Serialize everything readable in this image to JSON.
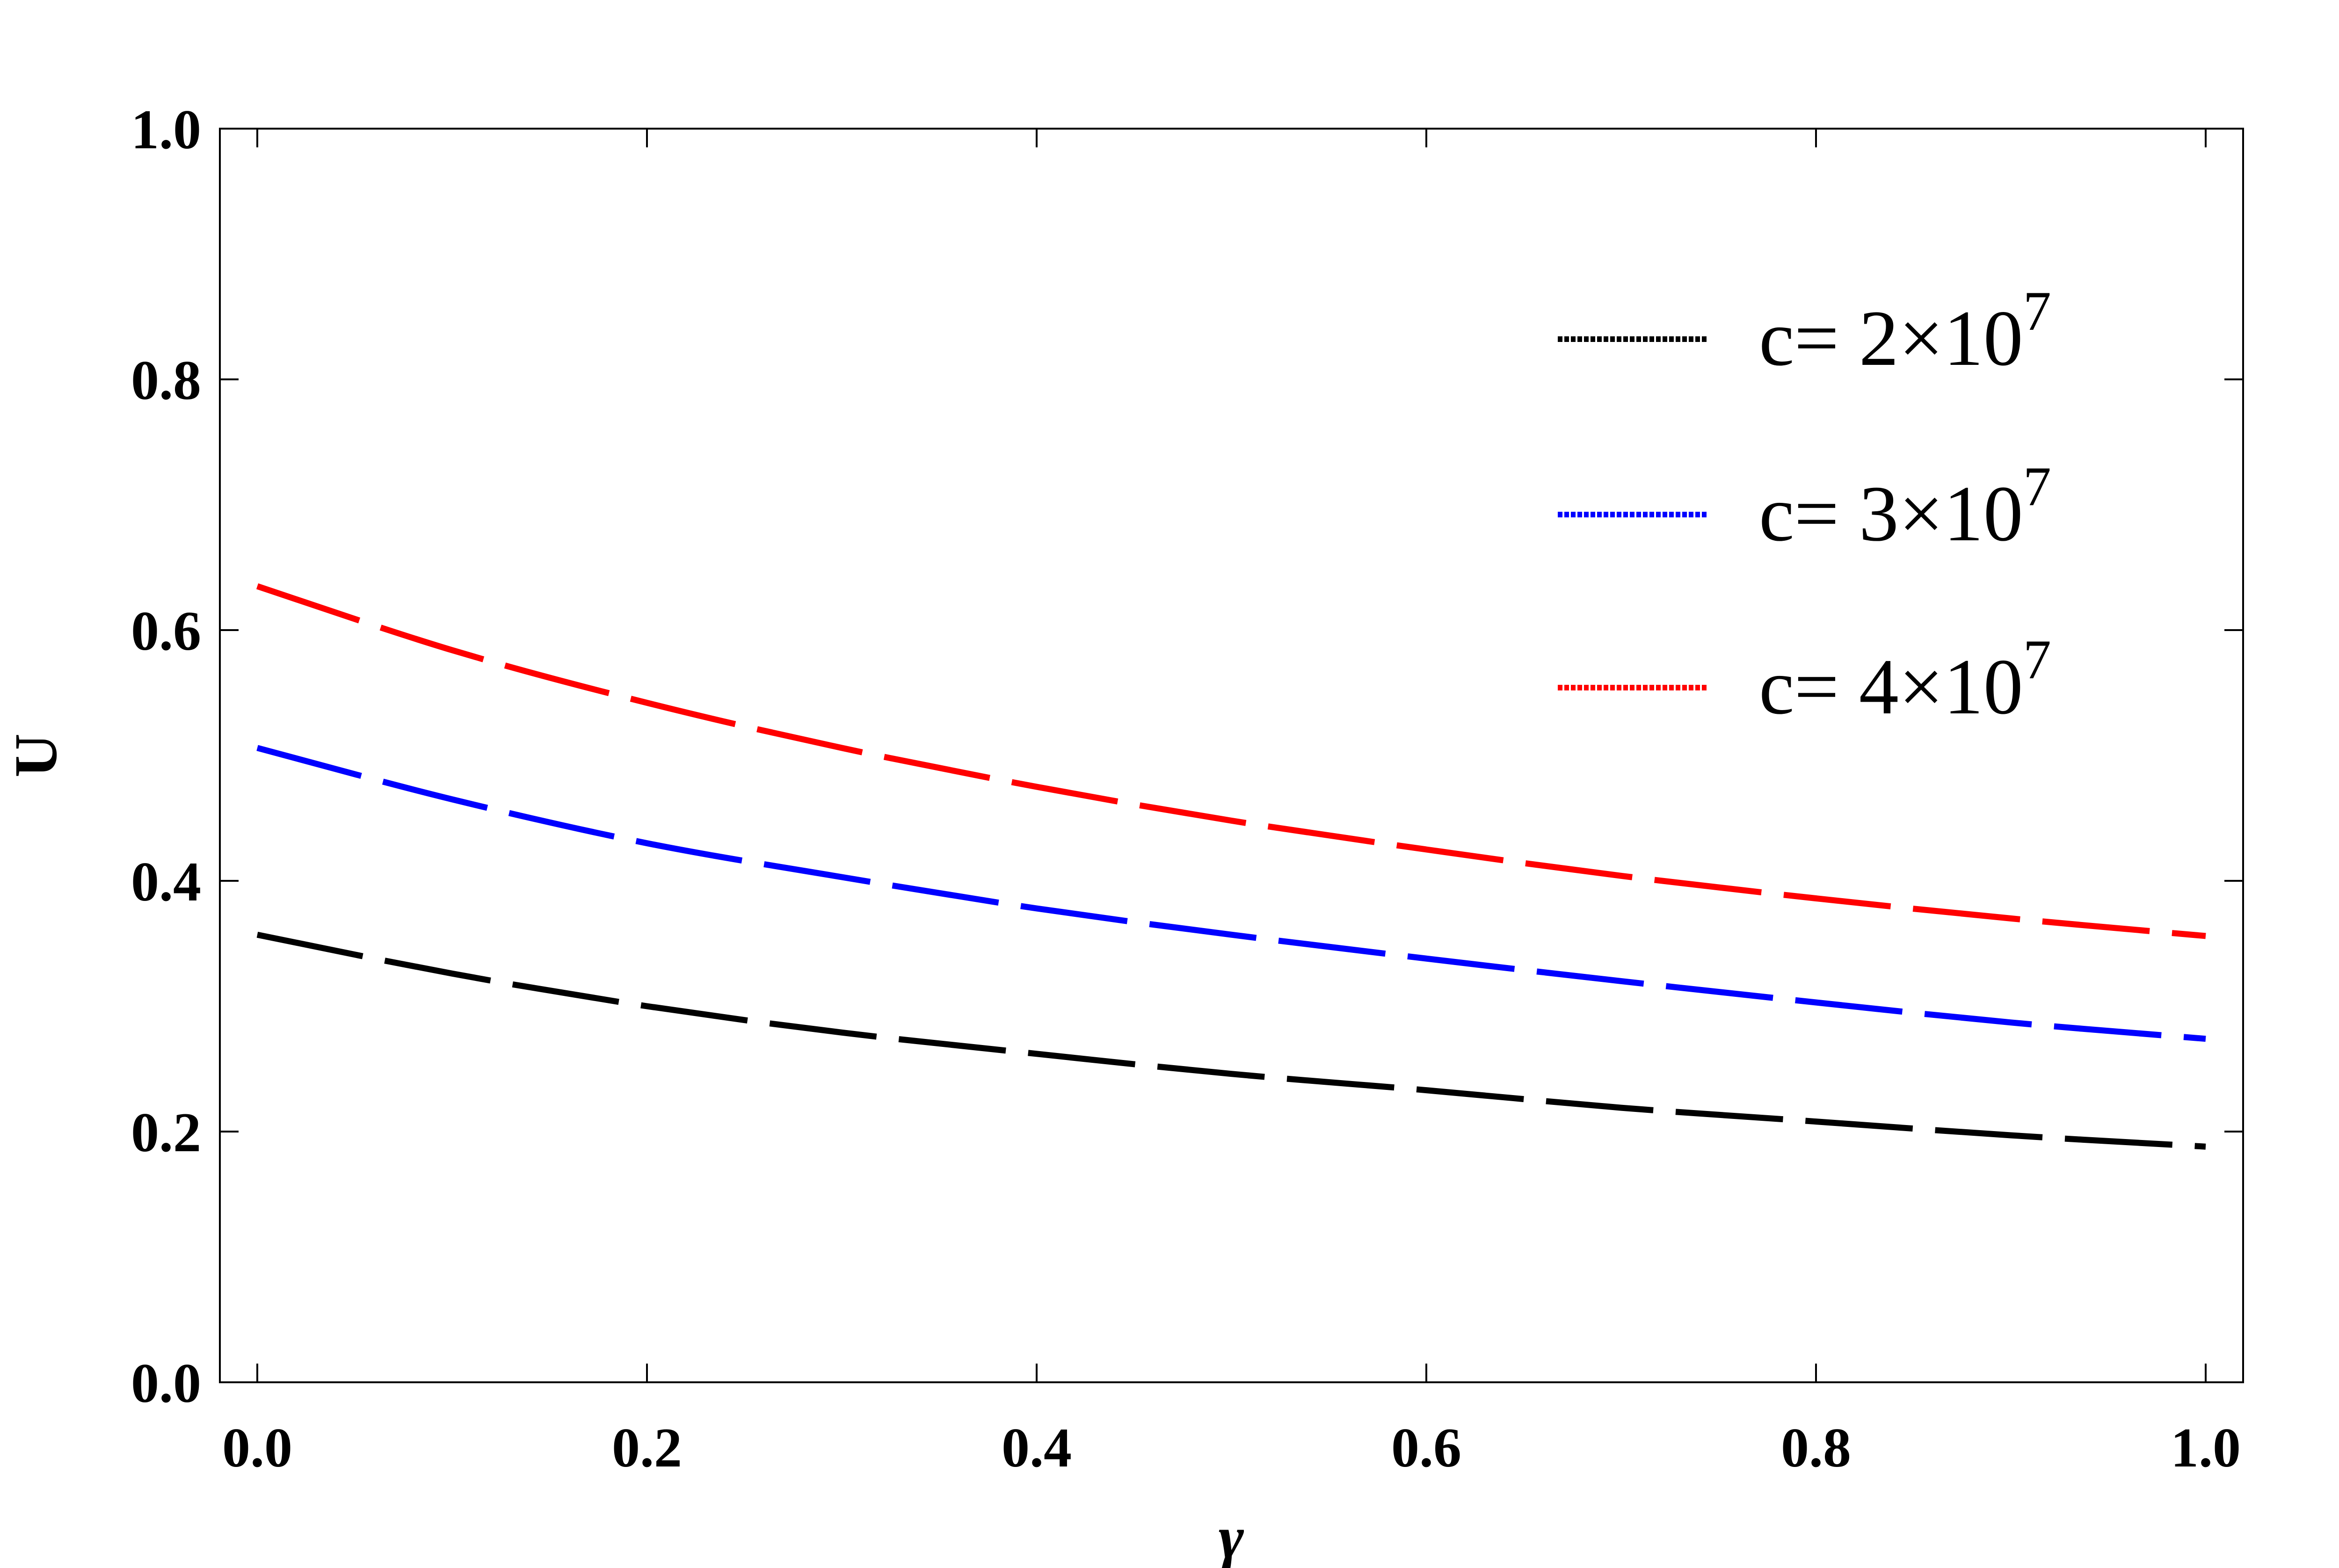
{
  "chart_data": {
    "type": "line",
    "title": "",
    "xlabel": "γ",
    "ylabel": "U",
    "xlim": [
      0.0,
      1.0
    ],
    "ylim": [
      0.0,
      1.0
    ],
    "grid": false,
    "legend_position": "top-right",
    "x_ticks": [
      "0.0",
      "0.2",
      "0.4",
      "0.6",
      "0.8",
      "1.0"
    ],
    "y_ticks": [
      "0.0",
      "0.2",
      "0.4",
      "0.6",
      "0.8",
      "1.0"
    ],
    "x": [
      0.0,
      0.1,
      0.2,
      0.3,
      0.4,
      0.5,
      0.6,
      0.7,
      0.8,
      0.9,
      1.0
    ],
    "series": [
      {
        "name": "c= 2×10",
        "exponent": "7",
        "color": "#000000",
        "values": [
          0.357,
          0.326,
          0.3,
          0.279,
          0.262,
          0.246,
          0.233,
          0.219,
          0.208,
          0.197,
          0.188
        ]
      },
      {
        "name": "c= 3×10",
        "exponent": "7",
        "color": "#0000ff",
        "values": [
          0.506,
          0.465,
          0.43,
          0.403,
          0.378,
          0.357,
          0.338,
          0.32,
          0.303,
          0.287,
          0.274
        ]
      },
      {
        "name": "c= 4×10",
        "exponent": "7",
        "color": "#ff0000",
        "values": [
          0.635,
          0.584,
          0.542,
          0.506,
          0.475,
          0.448,
          0.425,
          0.404,
          0.386,
          0.37,
          0.356
        ]
      }
    ]
  }
}
